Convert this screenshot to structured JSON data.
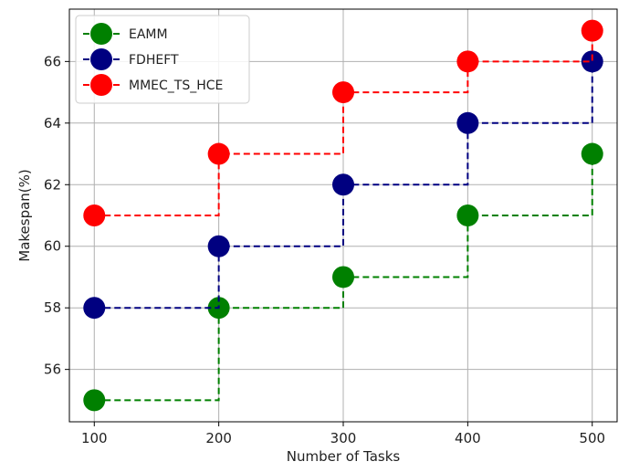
{
  "chart_data": {
    "type": "line",
    "step": "post",
    "xlabel": "Number of Tasks",
    "ylabel": "Makespan(%)",
    "x": [
      100,
      200,
      300,
      400,
      500
    ],
    "xticks": [
      100,
      200,
      300,
      400,
      500
    ],
    "yticks": [
      56,
      58,
      60,
      62,
      64,
      66
    ],
    "xlim": [
      80,
      520
    ],
    "ylim": [
      54.3,
      67.7
    ],
    "grid": true,
    "legend_position": "upper-left",
    "series": [
      {
        "name": "EAMM",
        "values": [
          55,
          58,
          59,
          61,
          63
        ],
        "color": "#008000"
      },
      {
        "name": "FDHEFT",
        "values": [
          58,
          60,
          62,
          64,
          66
        ],
        "color": "#000080"
      },
      {
        "name": "MMEC_TS_HCE",
        "values": [
          61,
          63,
          65,
          66,
          67
        ],
        "color": "#ff0000"
      }
    ]
  }
}
